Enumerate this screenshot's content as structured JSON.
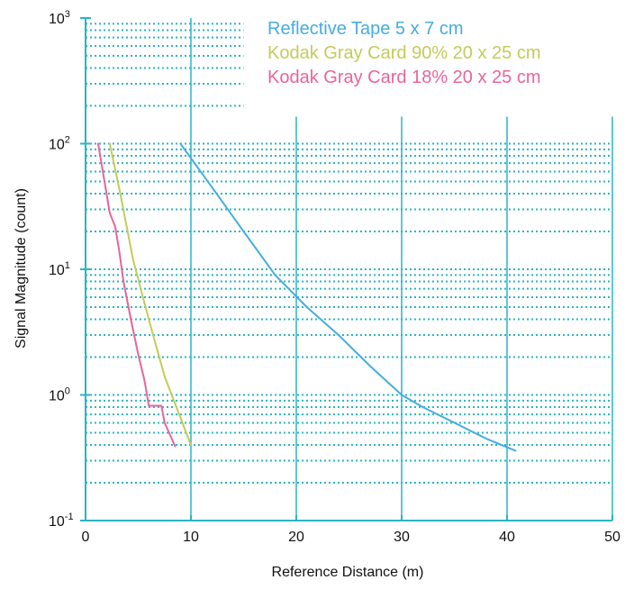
{
  "chart_data": {
    "type": "line",
    "title": "",
    "xlabel": "Reference Distance (m)",
    "ylabel": "Signal Magnitude (count)",
    "xlim": [
      0,
      50
    ],
    "ylim": [
      0.1,
      1000
    ],
    "y_scale": "log",
    "x_ticks": [
      0,
      10,
      20,
      30,
      40,
      50
    ],
    "x_tick_labels": [
      "0",
      "10",
      "20",
      "30",
      "40",
      "50"
    ],
    "y_ticks": [
      {
        "value": 0.1,
        "base": "10",
        "exp": "-1"
      },
      {
        "value": 1,
        "base": "10",
        "exp": "0"
      },
      {
        "value": 10,
        "base": "10",
        "exp": "1"
      },
      {
        "value": 100,
        "base": "10",
        "exp": "2"
      },
      {
        "value": 1000,
        "base": "10",
        "exp": "3"
      }
    ],
    "grid": {
      "vertical": true,
      "horizontal_minor_dotted": true,
      "color": "#29b5c4"
    },
    "legend_position": "top",
    "series": [
      {
        "name": "Reflective Tape 5 x 7 cm",
        "color": "#45ade0",
        "x": [
          9.0,
          12.0,
          15.0,
          18.0,
          21.0,
          24.0,
          27.0,
          30.0,
          32.0,
          35.0,
          38.0,
          40.8
        ],
        "y": [
          100,
          45,
          20,
          9.0,
          5.0,
          3.0,
          1.7,
          1.0,
          0.8,
          0.6,
          0.45,
          0.36
        ]
      },
      {
        "name": "Kodak Gray Card 90% 20 x 25 cm",
        "color": "#c2cc5a",
        "x": [
          2.3,
          3.3,
          4.5,
          6.0,
          7.5,
          10.0
        ],
        "y": [
          100,
          40,
          12,
          4.0,
          1.4,
          0.4
        ]
      },
      {
        "name": "Kodak Gray Card 18% 20 x 25 cm",
        "color": "#e8649c",
        "x": [
          1.2,
          2.3,
          2.8,
          3.2,
          3.6,
          4.3,
          5.0,
          5.6,
          6.0,
          6.3,
          7.2,
          7.5,
          8.5
        ],
        "y": [
          100,
          28,
          22,
          14,
          8.0,
          4.0,
          2.1,
          1.3,
          0.82,
          0.82,
          0.82,
          0.6,
          0.39
        ]
      }
    ]
  }
}
